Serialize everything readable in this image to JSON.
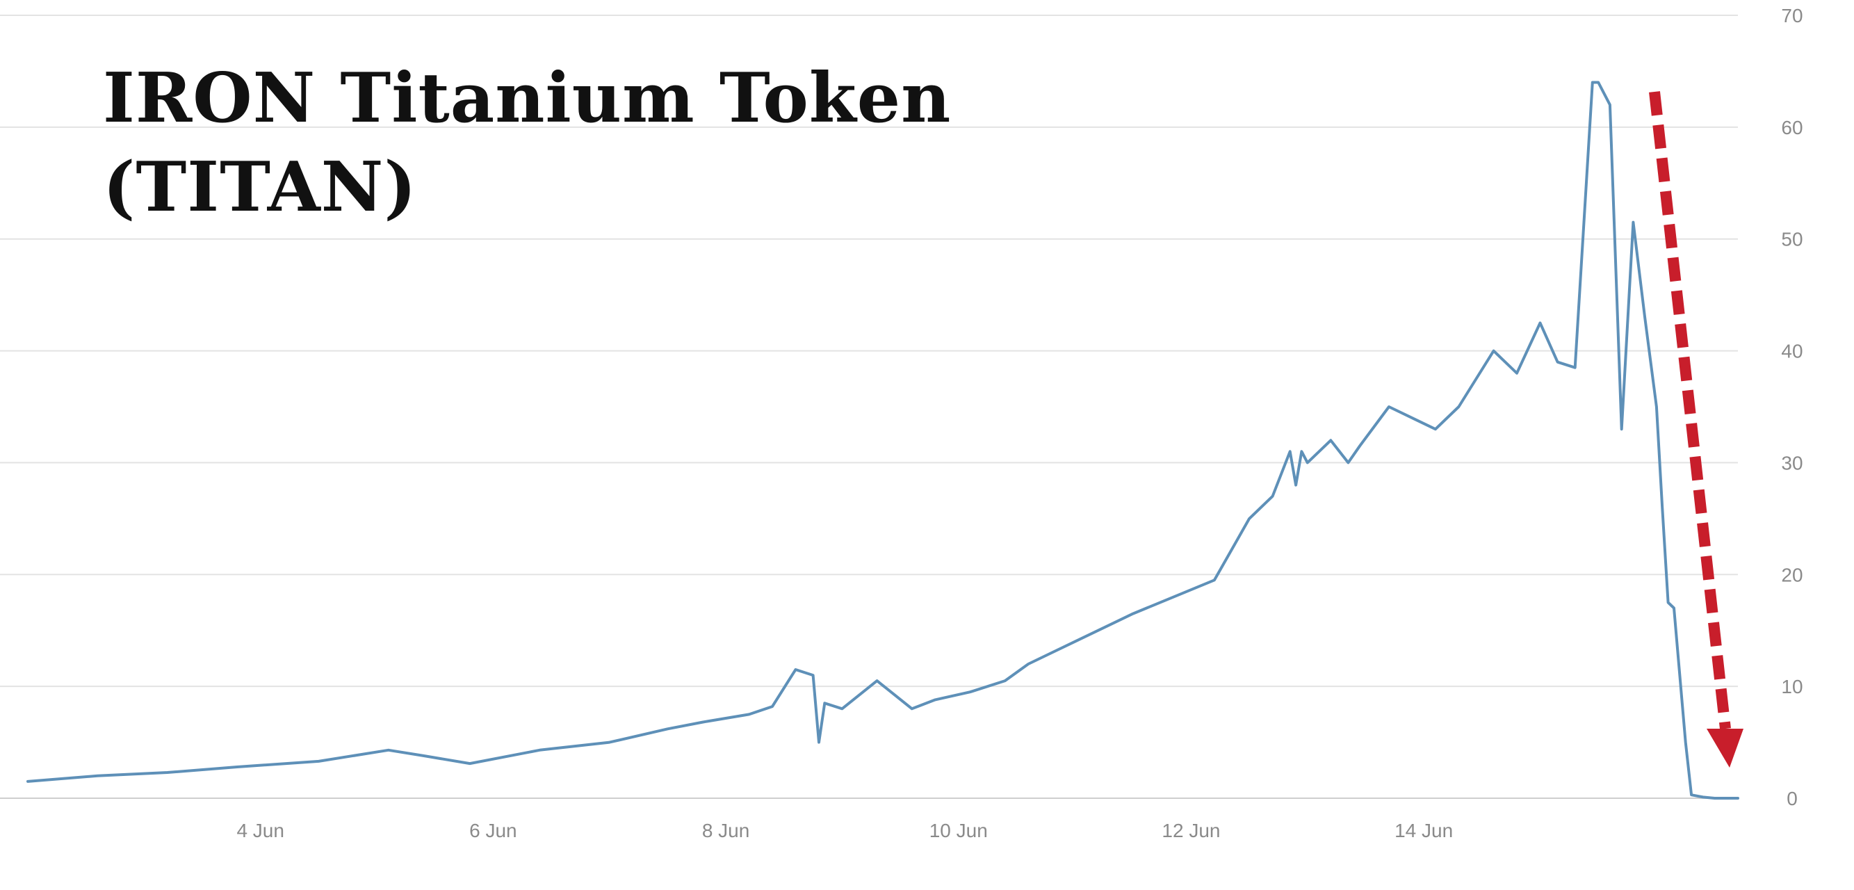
{
  "title_lines": [
    "IRON Titanium Token",
    "(TITAN)"
  ],
  "colors": {
    "line": "#5e90b8",
    "arrow": "#c81e2b",
    "grid": "#e3e3e3",
    "tick_text": "#8a8a8a"
  },
  "chart_data": {
    "type": "line",
    "title": "IRON Titanium Token (TITAN)",
    "xlabel": "",
    "ylabel": "",
    "ylim": [
      0,
      70
    ],
    "xlim": [
      2.0,
      16.7
    ],
    "y_ticks": [
      0,
      10,
      20,
      30,
      40,
      50,
      60,
      70
    ],
    "x_ticks": [
      {
        "value": 4,
        "label": "4 Jun"
      },
      {
        "value": 6,
        "label": "6 Jun"
      },
      {
        "value": 8,
        "label": "8 Jun"
      },
      {
        "value": 10,
        "label": "10 Jun"
      },
      {
        "value": 12,
        "label": "12 Jun"
      },
      {
        "value": 14,
        "label": "14 Jun"
      }
    ],
    "grid": true,
    "legend": "none",
    "annotation": "red dashed downward arrow from the peak toward zero",
    "series": [
      {
        "x": [
          2.0,
          2.6,
          3.2,
          3.8,
          4.5,
          5.1,
          5.4,
          5.8,
          6.4,
          7.0,
          7.5,
          7.8,
          8.2,
          8.4,
          8.6,
          8.75,
          8.8,
          8.85,
          9.0,
          9.3,
          9.6,
          9.8,
          10.1,
          10.4,
          10.6,
          11.0,
          11.5,
          12.2,
          12.5,
          12.7,
          12.85,
          12.9,
          12.95,
          13.0,
          13.2,
          13.35,
          13.45,
          13.7,
          13.9,
          14.1,
          14.3,
          14.6,
          14.8,
          15.0,
          15.15,
          15.3,
          15.45,
          15.5,
          15.6,
          15.7,
          15.8,
          15.9,
          16.0,
          16.05,
          16.1,
          16.15,
          16.25,
          16.3,
          16.4,
          16.5,
          16.7
        ],
        "y": [
          1.5,
          2.0,
          2.3,
          2.8,
          3.3,
          4.3,
          3.8,
          3.1,
          4.3,
          5.0,
          6.2,
          6.8,
          7.5,
          8.2,
          11.5,
          11.0,
          5.0,
          8.5,
          8.0,
          10.5,
          8.0,
          8.8,
          9.5,
          10.5,
          12.0,
          14.0,
          16.5,
          19.5,
          25.0,
          27.0,
          31.0,
          28.0,
          31.0,
          30.0,
          32.0,
          30.0,
          31.5,
          35.0,
          34.0,
          33.0,
          35.0,
          40.0,
          38.0,
          42.5,
          39.0,
          38.5,
          64.0,
          64.0,
          62.0,
          33.0,
          51.5,
          43.0,
          35.0,
          26.0,
          17.5,
          17.0,
          5.0,
          0.3,
          0.1,
          0.0,
          0.0
        ]
      }
    ]
  }
}
